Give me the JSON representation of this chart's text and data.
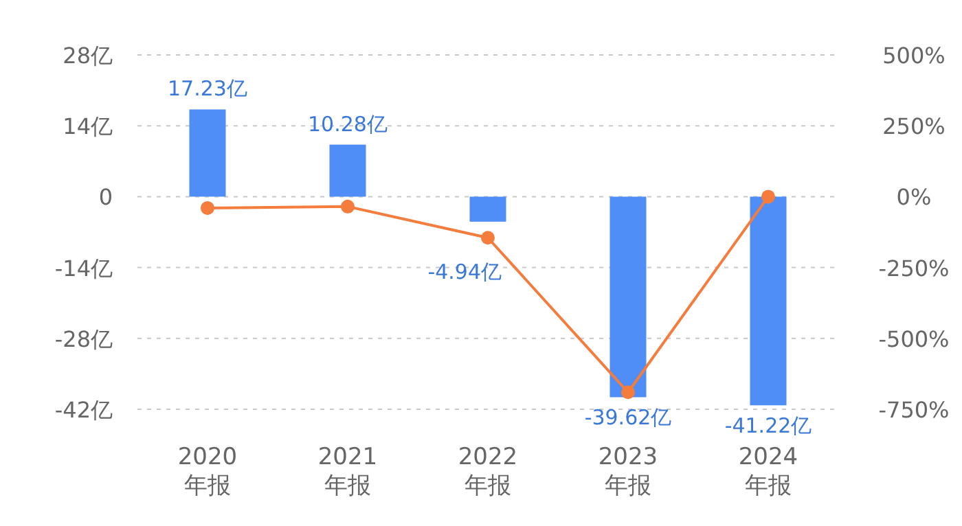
{
  "chart_data": {
    "type": "bar",
    "categories": [
      "2020 年报",
      "2021 年报",
      "2022 年报",
      "2023 年报",
      "2024 年报"
    ],
    "series": [
      {
        "color": "#4f8ef7",
        "values": [
          17.23,
          10.28,
          -4.94,
          -39.62,
          -41.22
        ],
        "value_labels": [
          "17.23亿",
          "10.28亿",
          "-4.94亿",
          "-39.62亿",
          "-41.22亿"
        ]
      },
      {
        "type": "line",
        "axis": "y2",
        "color": "#f47c3c",
        "marker": "circle",
        "values": [
          -40,
          -35,
          -145,
          -690,
          0
        ]
      }
    ],
    "ylim": [
      -42,
      28
    ],
    "yticks": [
      {
        "value": -42,
        "label": "-42亿"
      },
      {
        "value": -28,
        "label": "-28亿"
      },
      {
        "value": -14,
        "label": "-14亿"
      },
      0,
      {
        "value": 14,
        "label": "14亿"
      },
      {
        "value": 28,
        "label": "28亿"
      }
    ],
    "y2lim": [
      -750,
      500
    ],
    "y2ticks": [
      {
        "value": -750,
        "label": "-750%"
      },
      {
        "value": -500,
        "label": "-500%"
      },
      {
        "value": -250,
        "label": "-250%"
      },
      {
        "value": 0,
        "label": "0%"
      },
      {
        "value": 250,
        "label": "250%"
      },
      {
        "value": 500,
        "label": "500%"
      }
    ],
    "grid": "y"
  }
}
